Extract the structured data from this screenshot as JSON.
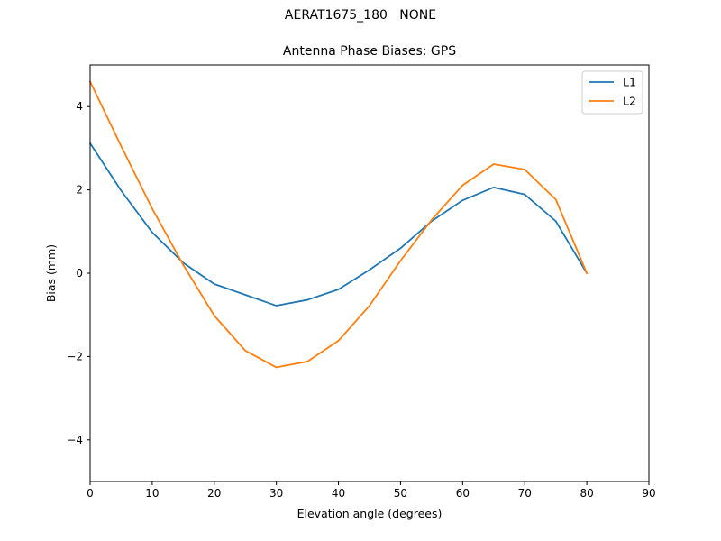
{
  "figure": {
    "suptitle": "AERAT1675_180   NONE"
  },
  "chart_data": {
    "type": "line",
    "title": "Antenna Phase Biases: GPS",
    "xlabel": "Elevation angle (degrees)",
    "ylabel": "Bias (mm)",
    "xlim": [
      0,
      90
    ],
    "ylim": [
      -5,
      5
    ],
    "xticks": [
      0,
      10,
      20,
      30,
      40,
      50,
      60,
      70,
      80,
      90
    ],
    "yticks": [
      -4,
      -2,
      0,
      2,
      4
    ],
    "grid": false,
    "legend_position": "top-right",
    "x": [
      0,
      5,
      10,
      15,
      20,
      25,
      30,
      35,
      40,
      45,
      50,
      55,
      60,
      65,
      70,
      75,
      80
    ],
    "series": [
      {
        "name": "L1",
        "color": "#1f77b4",
        "values": [
          3.12,
          1.98,
          0.98,
          0.25,
          -0.26,
          -0.52,
          -0.78,
          -0.64,
          -0.39,
          0.08,
          0.6,
          1.25,
          1.75,
          2.06,
          1.89,
          1.25,
          0.0
        ]
      },
      {
        "name": "L2",
        "color": "#ff7f0e",
        "values": [
          4.6,
          3.05,
          1.55,
          0.2,
          -1.02,
          -1.86,
          -2.26,
          -2.12,
          -1.62,
          -0.78,
          0.3,
          1.28,
          2.11,
          2.62,
          2.49,
          1.77,
          0.0
        ]
      }
    ]
  }
}
